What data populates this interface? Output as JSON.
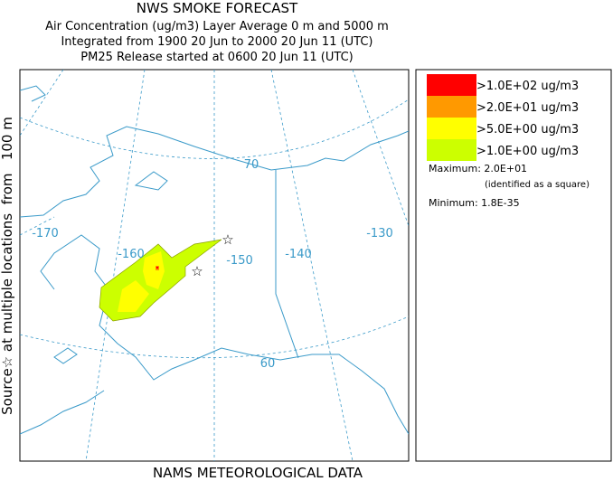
{
  "header": {
    "title": "NWS SMOKE FORECAST",
    "lines": [
      "Air Concentration (ug/m3) Layer Average    0 m and  5000 m",
      "Integrated from 1900 20 Jun to 2000 20 Jun 11 (UTC)",
      "PM25 Release started at 0600 20 Jun 11 (UTC)"
    ]
  },
  "side_label": "Source☆ at multiple locations  from   100 m",
  "footer": "NAMS METEOROLOGICAL DATA",
  "map": {
    "labels": [
      {
        "text": "-170"
      },
      {
        "text": "-160"
      },
      {
        "text": "-150"
      },
      {
        "text": "-140"
      },
      {
        "text": "-130"
      },
      {
        "text": "70"
      },
      {
        "text": "60"
      }
    ]
  },
  "legend": {
    "items": [
      {
        "label": ">1.0E+02 ug/m3",
        "color": "#ff0000"
      },
      {
        "label": ">2.0E+01 ug/m3",
        "color": "#ff9900"
      },
      {
        "label": ">5.0E+00 ug/m3",
        "color": "#ffff00"
      },
      {
        "label": ">1.0E+00 ug/m3",
        "color": "#ccff00"
      }
    ],
    "maximum": "Maximum: 2.0E+01",
    "maximum_note": "(identified as a square)",
    "minimum": "Minimum: 1.8E-35"
  }
}
